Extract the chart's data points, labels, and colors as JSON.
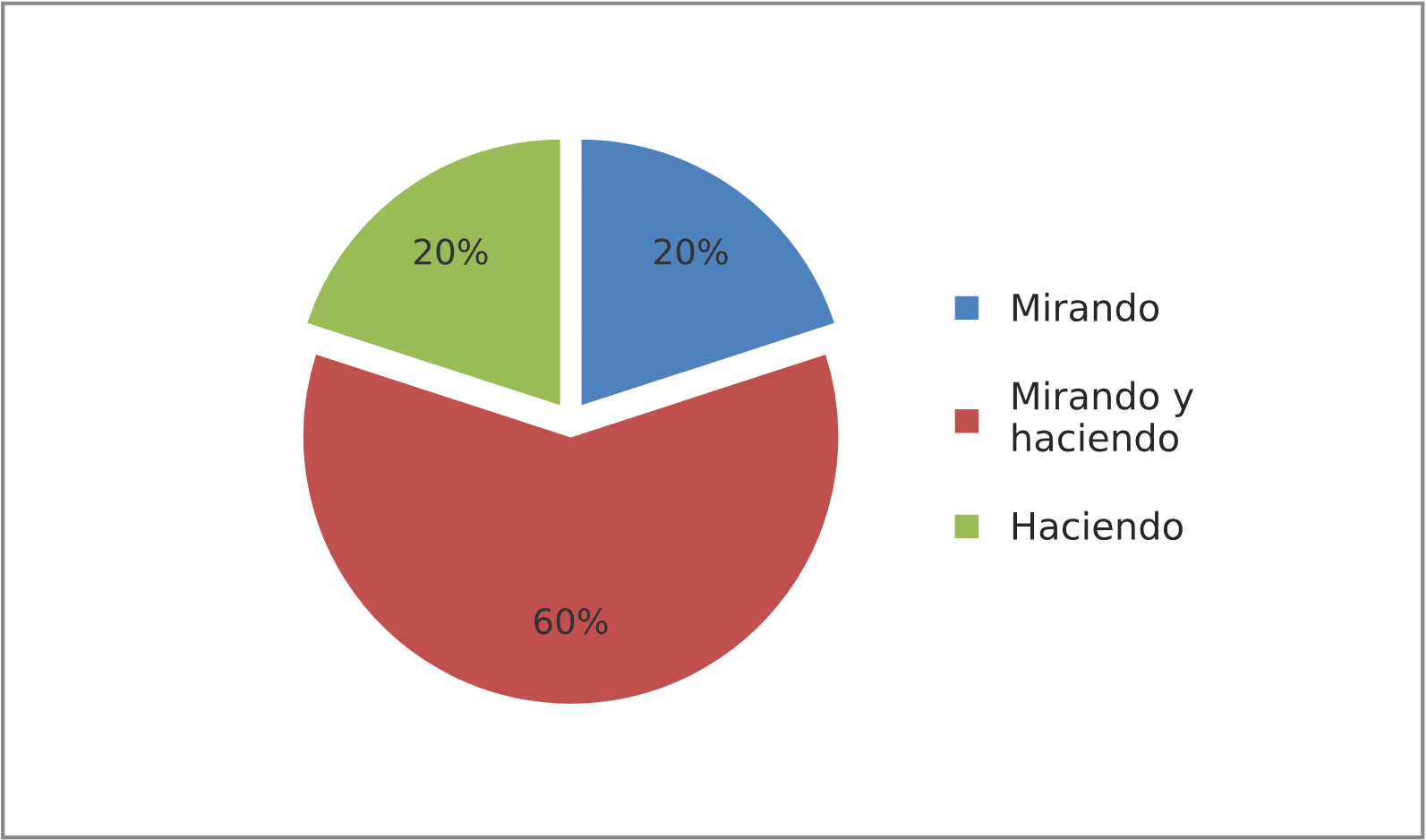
{
  "chart_data": {
    "type": "pie",
    "categories": [
      "Mirando",
      "Mirando y\nhaciendo",
      "Haciendo"
    ],
    "values": [
      20,
      60,
      20
    ],
    "colors": [
      "#4f81bd",
      "#c0504d",
      "#9bbb59"
    ],
    "value_labels": [
      "20%",
      "60%",
      "20%"
    ],
    "legend": "right"
  }
}
